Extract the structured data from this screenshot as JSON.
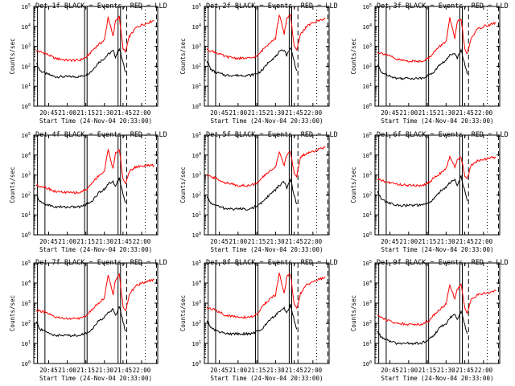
{
  "figure": {
    "layout": "3x3 grid of rate plots",
    "ylabel": "Counts/sec",
    "xlabel": "Start Time (24-Nov-04 20:33:00)",
    "x_tick_labels": [
      "20:45",
      "21:00",
      "21:15",
      "21:30",
      "21:45",
      "22:00"
    ],
    "y_tick_labels": [
      "10^0",
      "10^1",
      "10^2",
      "10^3",
      "10^4",
      "10^5"
    ],
    "colors": {
      "events": "#000000",
      "lld": "#ff0000",
      "axes": "#000000"
    }
  },
  "chart_data": [
    {
      "type": "line",
      "title": "Det 1f BLACK = Events, RED = LLD",
      "xlabel": "Start Time (24-Nov-04 20:33:00)",
      "ylabel": "Counts/sec",
      "yscale": "log",
      "ylim": [
        1,
        100000
      ],
      "xlim": [
        "20:33",
        "22:13"
      ],
      "grid": false,
      "legend": "in title",
      "series": [
        {
          "name": "Events",
          "color": "#000000",
          "x": [
            "20:35",
            "20:38",
            "20:42",
            "20:50",
            "21:00",
            "21:10",
            "21:16",
            "21:20",
            "21:25",
            "21:30",
            "21:33",
            "21:37",
            "21:39",
            "21:42",
            "21:45",
            "21:47"
          ],
          "values": [
            150,
            60,
            45,
            30,
            30,
            30,
            40,
            60,
            150,
            250,
            400,
            600,
            300,
            800,
            150,
            50
          ]
        },
        {
          "name": "LLD",
          "color": "#ff0000",
          "x": [
            "20:35",
            "20:42",
            "20:50",
            "21:00",
            "21:10",
            "21:16",
            "21:20",
            "21:25",
            "21:30",
            "21:33",
            "21:37",
            "21:39",
            "21:42",
            "21:45",
            "21:47",
            "21:50",
            "21:55",
            "22:00",
            "22:05",
            "22:10"
          ],
          "values": [
            600,
            450,
            250,
            200,
            200,
            300,
            600,
            1200,
            2000,
            30000,
            3000,
            20000,
            30000,
            800,
            500,
            3000,
            8000,
            12000,
            15000,
            20000
          ]
        }
      ]
    },
    {
      "type": "line",
      "title": "Det 2f BLACK = Events, RED = LLD",
      "xlabel": "Start Time (24-Nov-04 20:33:00)",
      "ylabel": "Counts/sec",
      "yscale": "log",
      "ylim": [
        1,
        100000
      ],
      "xlim": [
        "20:33",
        "22:13"
      ],
      "grid": false,
      "legend": "in title",
      "series": [
        {
          "name": "Events",
          "color": "#000000",
          "x": [
            "20:35",
            "20:38",
            "20:42",
            "20:50",
            "21:00",
            "21:10",
            "21:16",
            "21:20",
            "21:25",
            "21:30",
            "21:33",
            "21:37",
            "21:39",
            "21:42",
            "21:45",
            "21:47"
          ],
          "values": [
            200,
            70,
            50,
            35,
            35,
            35,
            45,
            70,
            180,
            300,
            500,
            700,
            350,
            900,
            180,
            60
          ]
        },
        {
          "name": "LLD",
          "color": "#ff0000",
          "x": [
            "20:35",
            "20:42",
            "20:50",
            "21:00",
            "21:10",
            "21:16",
            "21:20",
            "21:25",
            "21:30",
            "21:33",
            "21:37",
            "21:39",
            "21:42",
            "21:45",
            "21:47",
            "21:50",
            "21:55",
            "22:00",
            "22:05",
            "22:10"
          ],
          "values": [
            700,
            500,
            300,
            250,
            250,
            350,
            700,
            1500,
            2500,
            40000,
            4000,
            25000,
            40000,
            1000,
            600,
            4000,
            10000,
            15000,
            20000,
            25000
          ]
        }
      ]
    },
    {
      "type": "line",
      "title": "Det 3f BLACK = Events, RED = LLD",
      "xlabel": "Start Time (24-Nov-04 20:33:00)",
      "ylabel": "Counts/sec",
      "yscale": "log",
      "ylim": [
        1,
        100000
      ],
      "xlim": [
        "20:33",
        "22:13"
      ],
      "grid": false,
      "legend": "in title",
      "series": [
        {
          "name": "Events",
          "color": "#000000",
          "x": [
            "20:35",
            "20:38",
            "20:42",
            "20:50",
            "21:00",
            "21:10",
            "21:16",
            "21:20",
            "21:25",
            "21:30",
            "21:33",
            "21:37",
            "21:39",
            "21:42",
            "21:45",
            "21:47"
          ],
          "values": [
            120,
            50,
            40,
            25,
            25,
            25,
            35,
            50,
            120,
            200,
            350,
            500,
            250,
            700,
            120,
            40
          ]
        },
        {
          "name": "LLD",
          "color": "#ff0000",
          "x": [
            "20:35",
            "20:42",
            "20:50",
            "21:00",
            "21:10",
            "21:16",
            "21:20",
            "21:25",
            "21:30",
            "21:33",
            "21:37",
            "21:39",
            "21:42",
            "21:45",
            "21:47",
            "21:50",
            "21:55",
            "22:00",
            "22:05",
            "22:10"
          ],
          "values": [
            500,
            400,
            220,
            180,
            180,
            250,
            500,
            1000,
            1800,
            25000,
            2500,
            15000,
            25000,
            700,
            400,
            2500,
            7000,
            10000,
            12000,
            15000
          ]
        }
      ]
    },
    {
      "type": "line",
      "title": "Det 4f BLACK = Events, RED = LLD",
      "xlabel": "Start Time (24-Nov-04 20:33:00)",
      "ylabel": "Counts/sec",
      "yscale": "log",
      "ylim": [
        1,
        100000
      ],
      "xlim": [
        "20:33",
        "22:13"
      ],
      "grid": false,
      "legend": "in title",
      "series": [
        {
          "name": "Events",
          "color": "#000000",
          "x": [
            "20:35",
            "20:38",
            "20:42",
            "20:50",
            "21:00",
            "21:10",
            "21:16",
            "21:20",
            "21:25",
            "21:30",
            "21:33",
            "21:37",
            "21:39",
            "21:42",
            "21:45",
            "21:47"
          ],
          "values": [
            100,
            45,
            35,
            25,
            25,
            25,
            35,
            50,
            120,
            200,
            350,
            500,
            250,
            700,
            120,
            40
          ]
        },
        {
          "name": "LLD",
          "color": "#ff0000",
          "x": [
            "20:35",
            "20:42",
            "20:50",
            "21:00",
            "21:10",
            "21:16",
            "21:20",
            "21:25",
            "21:30",
            "21:33",
            "21:37",
            "21:39",
            "21:42",
            "21:45",
            "21:47",
            "21:50",
            "21:55",
            "22:00",
            "22:05",
            "22:10"
          ],
          "values": [
            300,
            250,
            150,
            130,
            130,
            200,
            400,
            900,
            1500,
            20000,
            2000,
            12000,
            20000,
            600,
            350,
            1500,
            2500,
            2800,
            3000,
            3000
          ]
        }
      ]
    },
    {
      "type": "line",
      "title": "Det 5f BLACK = Events, RED = LLD",
      "xlabel": "Start Time (24-Nov-04 20:33:00)",
      "ylabel": "Counts/sec",
      "yscale": "log",
      "ylim": [
        1,
        100000
      ],
      "xlim": [
        "20:33",
        "22:13"
      ],
      "grid": false,
      "legend": "in title",
      "series": [
        {
          "name": "Events",
          "color": "#000000",
          "x": [
            "20:35",
            "20:38",
            "20:42",
            "20:50",
            "21:00",
            "21:10",
            "21:16",
            "21:20",
            "21:25",
            "21:30",
            "21:33",
            "21:37",
            "21:39",
            "21:42",
            "21:45",
            "21:47"
          ],
          "values": [
            80,
            40,
            30,
            20,
            20,
            20,
            30,
            45,
            100,
            180,
            300,
            450,
            220,
            600,
            100,
            35
          ]
        },
        {
          "name": "LLD",
          "color": "#ff0000",
          "x": [
            "20:35",
            "20:42",
            "20:50",
            "21:00",
            "21:10",
            "21:16",
            "21:20",
            "21:25",
            "21:30",
            "21:33",
            "21:37",
            "21:39",
            "21:42",
            "21:45",
            "21:47",
            "21:50",
            "21:55",
            "22:00",
            "22:05",
            "22:10"
          ],
          "values": [
            900,
            700,
            400,
            300,
            300,
            400,
            800,
            1500,
            2500,
            15000,
            3000,
            10000,
            15000,
            1200,
            800,
            8000,
            12000,
            15000,
            20000,
            25000
          ]
        }
      ]
    },
    {
      "type": "line",
      "title": "Det 6f BLACK = Events, RED = LLD",
      "xlabel": "Start Time (24-Nov-04 20:33:00)",
      "ylabel": "Counts/sec",
      "yscale": "log",
      "ylim": [
        1,
        100000
      ],
      "xlim": [
        "20:33",
        "22:13"
      ],
      "grid": false,
      "legend": "in title",
      "series": [
        {
          "name": "Events",
          "color": "#000000",
          "x": [
            "20:35",
            "20:38",
            "20:42",
            "20:50",
            "21:00",
            "21:10",
            "21:16",
            "21:20",
            "21:25",
            "21:30",
            "21:33",
            "21:37",
            "21:39",
            "21:42",
            "21:45",
            "21:47"
          ],
          "values": [
            150,
            60,
            45,
            30,
            30,
            30,
            40,
            60,
            150,
            250,
            400,
            600,
            300,
            800,
            150,
            50
          ]
        },
        {
          "name": "LLD",
          "color": "#ff0000",
          "x": [
            "20:35",
            "20:42",
            "20:50",
            "21:00",
            "21:10",
            "21:16",
            "21:20",
            "21:25",
            "21:30",
            "21:33",
            "21:37",
            "21:39",
            "21:42",
            "21:45",
            "21:47",
            "21:50",
            "21:55",
            "22:00",
            "22:05",
            "22:10"
          ],
          "values": [
            600,
            450,
            350,
            300,
            300,
            400,
            700,
            1200,
            2000,
            8000,
            2500,
            6000,
            8000,
            900,
            600,
            3000,
            5000,
            6000,
            7000,
            8000
          ]
        }
      ]
    },
    {
      "type": "line",
      "title": "Det 7f BLACK = Events, RED = LLD",
      "xlabel": "Start Time (24-Nov-04 20:33:00)",
      "ylabel": "Counts/sec",
      "yscale": "log",
      "ylim": [
        1,
        100000
      ],
      "xlim": [
        "20:33",
        "22:13"
      ],
      "grid": false,
      "legend": "in title",
      "series": [
        {
          "name": "Events",
          "color": "#000000",
          "x": [
            "20:35",
            "20:38",
            "20:42",
            "20:50",
            "21:00",
            "21:10",
            "21:16",
            "21:20",
            "21:25",
            "21:30",
            "21:33",
            "21:37",
            "21:39",
            "21:42",
            "21:45",
            "21:47"
          ],
          "values": [
            120,
            50,
            40,
            25,
            25,
            25,
            35,
            50,
            120,
            200,
            350,
            500,
            250,
            700,
            120,
            40
          ]
        },
        {
          "name": "LLD",
          "color": "#ff0000",
          "x": [
            "20:35",
            "20:42",
            "20:50",
            "21:00",
            "21:10",
            "21:16",
            "21:20",
            "21:25",
            "21:30",
            "21:33",
            "21:37",
            "21:39",
            "21:42",
            "21:45",
            "21:47",
            "21:50",
            "21:55",
            "22:00",
            "22:05",
            "22:10"
          ],
          "values": [
            450,
            350,
            200,
            170,
            170,
            250,
            500,
            1000,
            1800,
            25000,
            2500,
            15000,
            25000,
            700,
            400,
            2500,
            7000,
            10000,
            12000,
            15000
          ]
        }
      ]
    },
    {
      "type": "line",
      "title": "Det 8f BLACK = Events, RED = LLD",
      "xlabel": "Start Time (24-Nov-04 20:33:00)",
      "ylabel": "Counts/sec",
      "yscale": "log",
      "ylim": [
        1,
        100000
      ],
      "xlim": [
        "20:33",
        "22:13"
      ],
      "grid": false,
      "legend": "in title",
      "series": [
        {
          "name": "Events",
          "color": "#000000",
          "x": [
            "20:35",
            "20:38",
            "20:42",
            "20:50",
            "21:00",
            "21:10",
            "21:16",
            "21:20",
            "21:25",
            "21:30",
            "21:33",
            "21:37",
            "21:39",
            "21:42",
            "21:45",
            "21:47"
          ],
          "values": [
            150,
            60,
            45,
            30,
            30,
            30,
            40,
            60,
            150,
            250,
            400,
            600,
            300,
            800,
            150,
            50
          ]
        },
        {
          "name": "LLD",
          "color": "#ff0000",
          "x": [
            "20:35",
            "20:42",
            "20:50",
            "21:00",
            "21:10",
            "21:16",
            "21:20",
            "21:25",
            "21:30",
            "21:33",
            "21:37",
            "21:39",
            "21:42",
            "21:45",
            "21:47",
            "21:50",
            "21:55",
            "22:00",
            "22:05",
            "22:10"
          ],
          "values": [
            600,
            450,
            250,
            200,
            200,
            300,
            800,
            1500,
            2500,
            30000,
            3000,
            20000,
            30000,
            800,
            500,
            3000,
            8000,
            12000,
            15000,
            20000
          ]
        }
      ]
    },
    {
      "type": "line",
      "title": "Det 9f BLACK = Events, RED = LLD",
      "xlabel": "Start Time (24-Nov-04 20:33:00)",
      "ylabel": "Counts/sec",
      "yscale": "log",
      "ylim": [
        1,
        100000
      ],
      "xlim": [
        "20:33",
        "22:13"
      ],
      "grid": false,
      "legend": "in title",
      "series": [
        {
          "name": "Events",
          "color": "#000000",
          "x": [
            "20:35",
            "20:38",
            "20:42",
            "20:50",
            "21:00",
            "21:10",
            "21:16",
            "21:20",
            "21:25",
            "21:30",
            "21:33",
            "21:37",
            "21:39",
            "21:42",
            "21:45",
            "21:47"
          ],
          "values": [
            40,
            20,
            15,
            10,
            10,
            10,
            15,
            25,
            60,
            100,
            180,
            300,
            150,
            400,
            80,
            30
          ]
        },
        {
          "name": "LLD",
          "color": "#ff0000",
          "x": [
            "20:35",
            "20:42",
            "20:50",
            "21:00",
            "21:10",
            "21:16",
            "21:20",
            "21:25",
            "21:30",
            "21:33",
            "21:37",
            "21:39",
            "21:42",
            "21:45",
            "21:47",
            "21:50",
            "21:55",
            "22:00",
            "22:05",
            "22:10"
          ],
          "values": [
            250,
            150,
            100,
            90,
            90,
            130,
            250,
            500,
            900,
            8000,
            1500,
            5000,
            8000,
            600,
            300,
            1500,
            2500,
            3000,
            3500,
            4000
          ]
        }
      ]
    }
  ]
}
